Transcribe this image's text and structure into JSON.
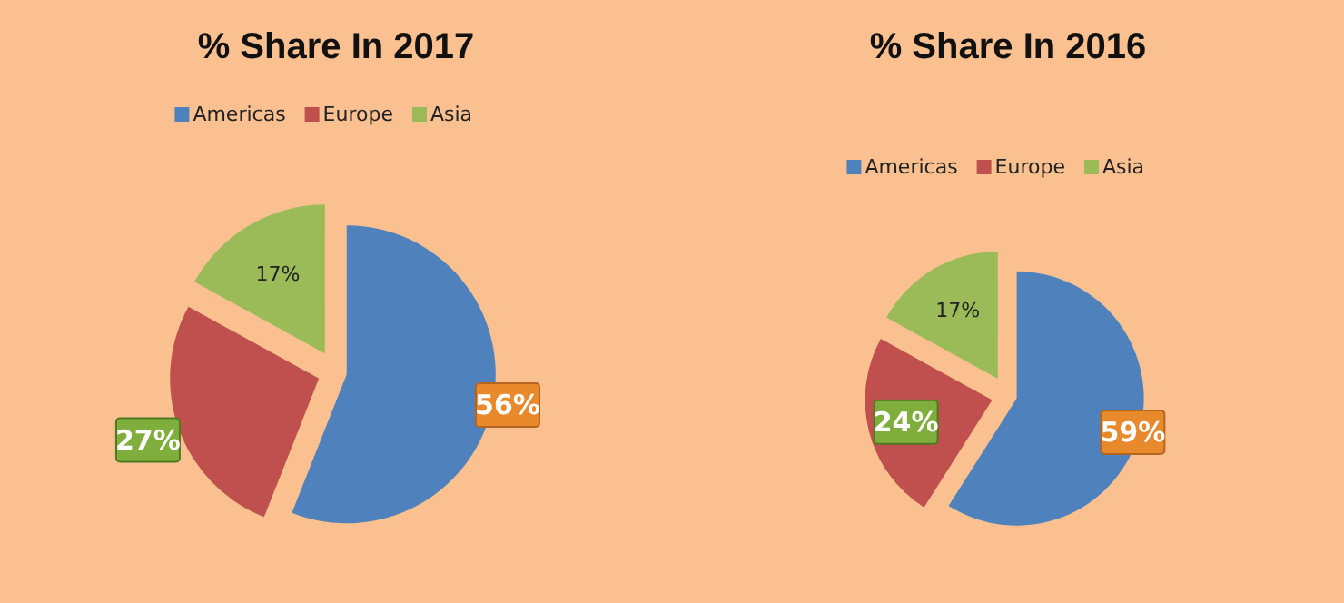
{
  "chart_data": [
    {
      "type": "pie",
      "title": "% Share In 2017",
      "categories": [
        "Americas",
        "Europe",
        "Asia"
      ],
      "values": [
        56,
        27,
        17
      ],
      "colors": [
        "#4f81bd",
        "#c0504d",
        "#9bbb59"
      ],
      "value_labels": [
        "56%",
        "27%",
        "17%"
      ],
      "legend": "top"
    },
    {
      "type": "pie",
      "title": "% Share In 2016",
      "categories": [
        "Americas",
        "Europe",
        "Asia"
      ],
      "values": [
        59,
        24,
        17
      ],
      "colors": [
        "#4f81bd",
        "#c0504d",
        "#9bbb59"
      ],
      "value_labels": [
        "59%",
        "24%",
        "17%"
      ],
      "legend": "top"
    }
  ]
}
